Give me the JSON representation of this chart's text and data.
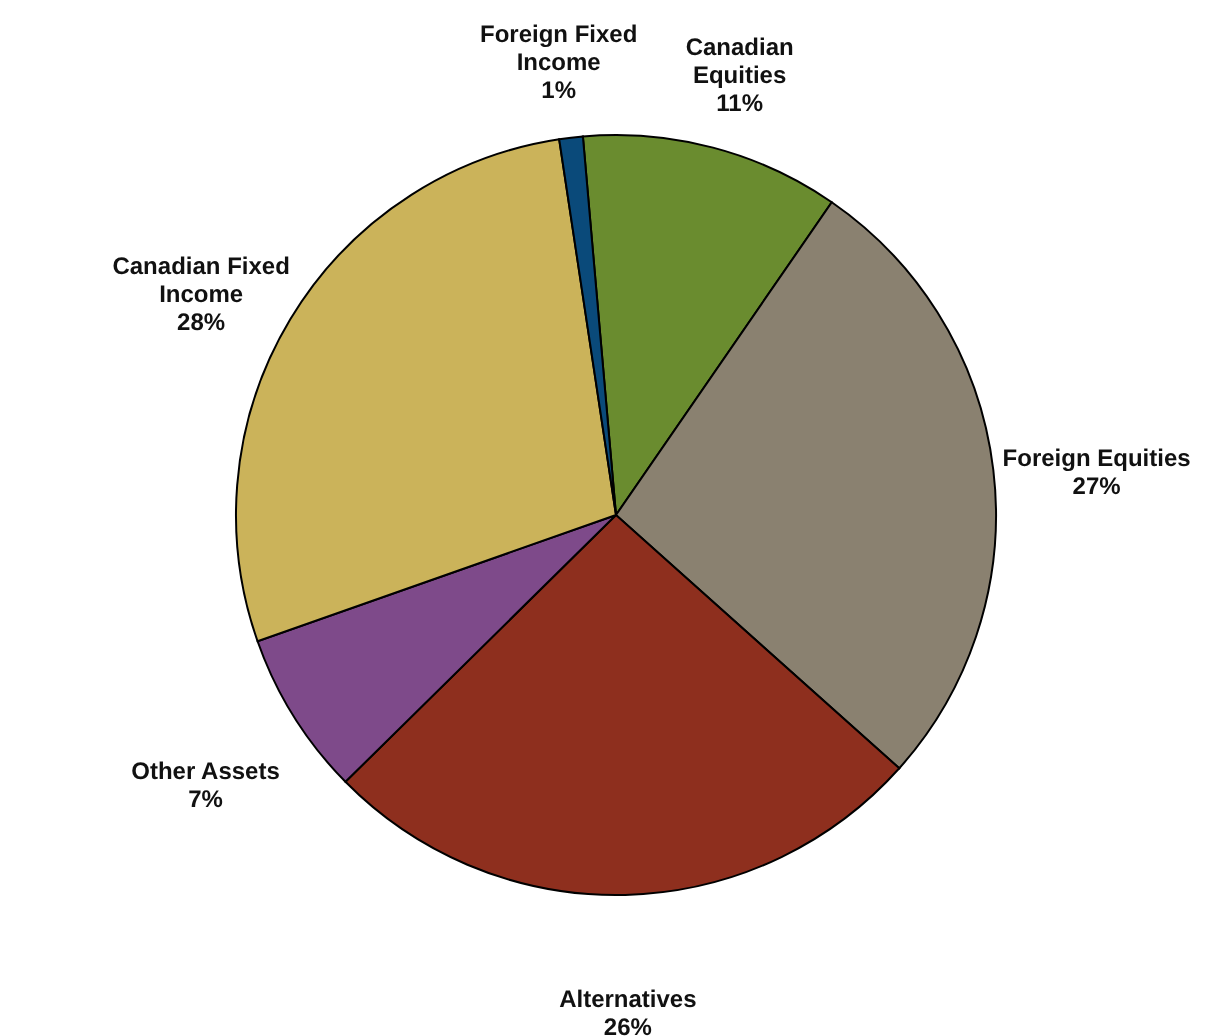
{
  "chart_data": {
    "type": "pie",
    "categories": [
      "Canadian Equities",
      "Foreign Equities",
      "Alternatives",
      "Other Assets",
      "Canadian Fixed Income",
      "Foreign Fixed Income"
    ],
    "values": [
      11,
      27,
      26,
      7,
      28,
      1
    ],
    "value_labels": [
      "11%",
      "27%",
      "26%",
      "7%",
      "28%",
      "1%"
    ],
    "colors": [
      "#6a8c2f",
      "#8a8170",
      "#8e2f1e",
      "#7e4a8a",
      "#cbb35a",
      "#0a4a7a"
    ],
    "legend": false
  }
}
